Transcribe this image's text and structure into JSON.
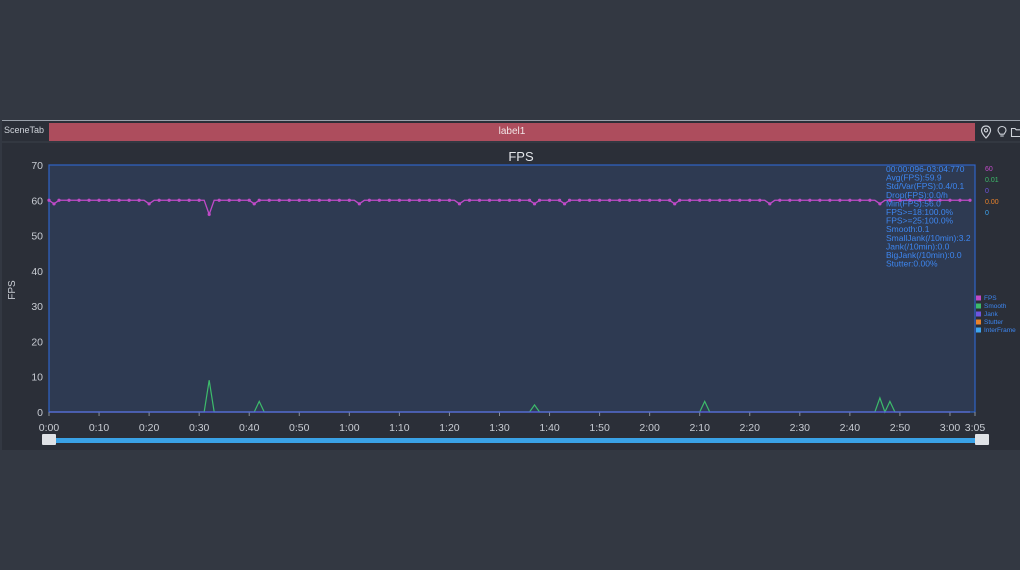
{
  "scene_tab": "SceneTab",
  "tab_title": "label1",
  "toolbar_icons": [
    "location-pin-icon",
    "lightbulb-icon",
    "folder-icon"
  ],
  "stats_right": [
    "60",
    "0.01",
    "0",
    "0.00",
    "0"
  ],
  "stats_right_colors": [
    "#c04ac8",
    "#3dbb6b",
    "#6f55e0",
    "#e8822b",
    "#3ea6f0"
  ],
  "stats": [
    "00:00:096-03:04:770",
    "Avg(FPS):59.9",
    "Std/Var(FPS):0.4/0.1",
    "Drop(FPS):0.0/h",
    "Min(FPS):56.0",
    "FPS>=18:100.0%",
    "FPS>=25:100.0%",
    "Smooth:0.1",
    "SmallJank(/10min):3.2",
    "Jank(/10min):0.0",
    "BigJank(/10min):0.0",
    "Stutter:0.00%"
  ],
  "chart_data": {
    "type": "line",
    "title": "FPS",
    "ylabel": "FPS",
    "xlabel": "",
    "ylim": [
      0,
      70
    ],
    "yticks": [
      0,
      10,
      20,
      30,
      40,
      50,
      60,
      70
    ],
    "xlim_seconds": [
      0,
      185
    ],
    "xticks": [
      "0:00",
      "0:10",
      "0:20",
      "0:30",
      "0:40",
      "0:50",
      "1:00",
      "1:10",
      "1:20",
      "1:30",
      "1:40",
      "1:50",
      "2:00",
      "2:10",
      "2:20",
      "2:30",
      "2:40",
      "2:50",
      "3:00",
      "3:05"
    ],
    "grid": false,
    "legend_position": "right",
    "legend": [
      {
        "name": "FPS",
        "color": "#c04ac8"
      },
      {
        "name": "Smooth",
        "color": "#3dbb6b"
      },
      {
        "name": "Jank",
        "color": "#6f55e0"
      },
      {
        "name": "Stutter",
        "color": "#e8822b"
      },
      {
        "name": "InterFrame",
        "color": "#3ea6f0"
      }
    ],
    "series": [
      {
        "name": "FPS",
        "color": "#c04ac8",
        "baseline": 60,
        "dips": [
          [
            1,
            59
          ],
          [
            20,
            59
          ],
          [
            32,
            56
          ],
          [
            41,
            59
          ],
          [
            62,
            59
          ],
          [
            82,
            59
          ],
          [
            97,
            59
          ],
          [
            103,
            59
          ],
          [
            125,
            59
          ],
          [
            144,
            59
          ],
          [
            166,
            59
          ]
        ]
      },
      {
        "name": "Smooth",
        "color": "#3dbb6b",
        "baseline": 0,
        "spikes": [
          [
            32,
            9
          ],
          [
            42,
            3
          ],
          [
            97,
            2
          ],
          [
            131,
            3
          ],
          [
            166,
            4
          ],
          [
            168,
            3
          ]
        ]
      }
    ]
  }
}
